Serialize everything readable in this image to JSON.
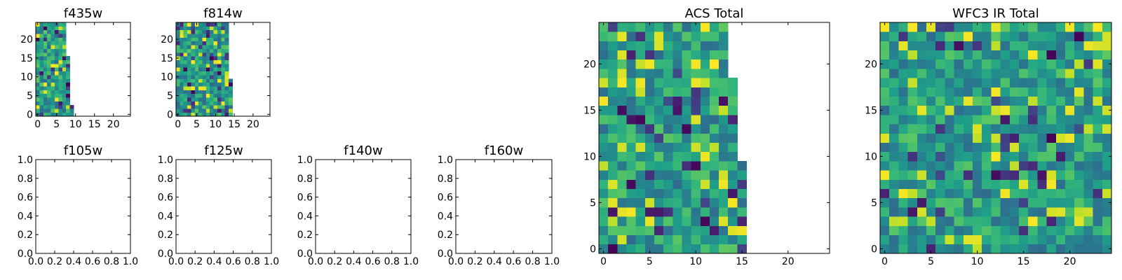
{
  "chart_data": [
    {
      "type": "heatmap",
      "title": "f435w",
      "xlim": [
        -0.5,
        24.5
      ],
      "ylim": [
        -0.5,
        24.5
      ],
      "xticks": [
        0,
        5,
        10,
        15,
        20
      ],
      "yticks": [
        0,
        5,
        10,
        15,
        20
      ],
      "xticklabels": [
        "0",
        "5",
        "10",
        "15",
        "20"
      ],
      "yticklabels": [
        "0",
        "5",
        "10",
        "15",
        "20"
      ],
      "colormap": "viridis",
      "filled_columns_by_row": [
        10,
        10,
        10,
        9,
        9,
        9,
        9,
        9,
        9,
        9,
        9,
        9,
        9,
        9,
        9,
        9,
        8,
        8,
        8,
        8,
        8,
        8,
        8,
        8,
        8
      ],
      "seed": 11
    },
    {
      "type": "heatmap",
      "title": "f814w",
      "xlim": [
        -0.5,
        24.5
      ],
      "ylim": [
        -0.5,
        24.5
      ],
      "xticks": [
        0,
        5,
        10,
        15,
        20
      ],
      "yticks": [
        0,
        5,
        10,
        15,
        20
      ],
      "xticklabels": [
        "0",
        "5",
        "10",
        "15",
        "20"
      ],
      "yticklabels": [
        "0",
        "5",
        "10",
        "15",
        "20"
      ],
      "colormap": "viridis",
      "filled_columns_by_row": [
        15,
        15,
        15,
        15,
        15,
        15,
        15,
        15,
        15,
        15,
        14,
        14,
        14,
        14,
        14,
        14,
        14,
        14,
        14,
        14,
        14,
        14,
        14,
        14,
        14
      ],
      "seed": 23
    },
    {
      "type": "empty",
      "title": "f105w",
      "xlim": [
        0.0,
        1.0
      ],
      "ylim": [
        0.0,
        1.0
      ],
      "xticklabels": [
        "0.0",
        "0.2",
        "0.4",
        "0.6",
        "0.8",
        "1.0"
      ],
      "yticklabels": [
        "0.0",
        "0.2",
        "0.4",
        "0.6",
        "0.8",
        "1.0"
      ]
    },
    {
      "type": "empty",
      "title": "f125w",
      "xlim": [
        0.0,
        1.0
      ],
      "ylim": [
        0.0,
        1.0
      ],
      "xticklabels": [
        "0.0",
        "0.2",
        "0.4",
        "0.6",
        "0.8",
        "1.0"
      ],
      "yticklabels": [
        "0.0",
        "0.2",
        "0.4",
        "0.6",
        "0.8",
        "1.0"
      ]
    },
    {
      "type": "empty",
      "title": "f140w",
      "xlim": [
        0.0,
        1.0
      ],
      "ylim": [
        0.0,
        1.0
      ],
      "xticklabels": [
        "0.0",
        "0.2",
        "0.4",
        "0.6",
        "0.8",
        "1.0"
      ],
      "yticklabels": [
        "0.0",
        "0.2",
        "0.4",
        "0.6",
        "0.8",
        "1.0"
      ]
    },
    {
      "type": "empty",
      "title": "f160w",
      "xlim": [
        0.0,
        1.0
      ],
      "ylim": [
        0.0,
        1.0
      ],
      "xticklabels": [
        "0.0",
        "0.2",
        "0.4",
        "0.6",
        "0.8",
        "1.0"
      ],
      "yticklabels": [
        "0.0",
        "0.2",
        "0.4",
        "0.6",
        "0.8",
        "1.0"
      ]
    },
    {
      "type": "heatmap",
      "title": "ACS Total",
      "xlim": [
        -0.5,
        24.5
      ],
      "ylim": [
        -0.5,
        24.5
      ],
      "xticks": [
        0,
        5,
        10,
        15,
        20
      ],
      "yticks": [
        0,
        5,
        10,
        15,
        20
      ],
      "xticklabels": [
        "0",
        "5",
        "10",
        "15",
        "20"
      ],
      "yticklabels": [
        "0",
        "5",
        "10",
        "15",
        "20"
      ],
      "colormap": "viridis",
      "filled_columns_by_row": [
        16,
        16,
        16,
        16,
        16,
        16,
        16,
        16,
        16,
        16,
        15,
        15,
        15,
        15,
        15,
        15,
        15,
        15,
        15,
        14,
        14,
        14,
        14,
        14,
        14
      ],
      "seed": 37
    },
    {
      "type": "heatmap",
      "title": "WFC3 IR Total",
      "xlim": [
        -0.5,
        24.5
      ],
      "ylim": [
        -0.5,
        24.5
      ],
      "xticks": [
        0,
        5,
        10,
        15,
        20
      ],
      "yticks": [
        0,
        5,
        10,
        15,
        20
      ],
      "xticklabels": [
        "0",
        "5",
        "10",
        "15",
        "20"
      ],
      "yticklabels": [
        "0",
        "5",
        "10",
        "15",
        "20"
      ],
      "colormap": "viridis",
      "filled_columns_by_row": [
        25,
        25,
        25,
        25,
        25,
        25,
        25,
        25,
        25,
        25,
        25,
        25,
        25,
        25,
        25,
        25,
        25,
        25,
        25,
        25,
        25,
        25,
        25,
        25,
        25
      ],
      "seed": 53
    }
  ]
}
